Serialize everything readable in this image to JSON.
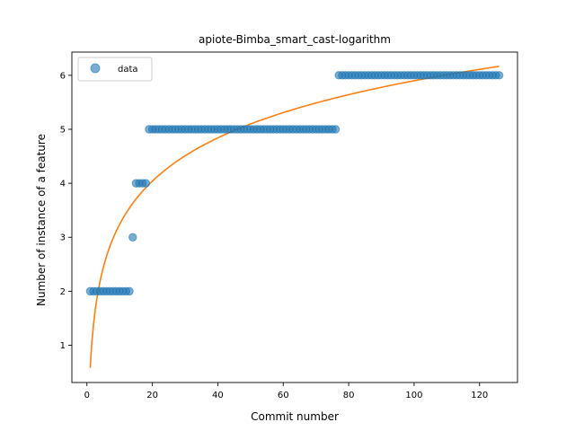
{
  "chart_data": {
    "type": "scatter",
    "title": "apiote-Bimba_smart_cast-logarithm",
    "xlabel": "Commit number",
    "ylabel": "Number of instance of a feature",
    "xlim": [
      -4.6,
      131.6
    ],
    "ylim": [
      0.31,
      6.43
    ],
    "x_ticks": [
      0,
      20,
      40,
      60,
      80,
      100,
      120
    ],
    "y_ticks": [
      1,
      2,
      3,
      4,
      5,
      6
    ],
    "grid": false,
    "legend": {
      "position": "top-left",
      "entries": [
        "data"
      ]
    },
    "colors": {
      "points": "#1f77b4",
      "fit": "#ff7f0e"
    },
    "series": [
      {
        "name": "data",
        "kind": "scatter",
        "points": [
          [
            1,
            2
          ],
          [
            2,
            2
          ],
          [
            3,
            2
          ],
          [
            4,
            2
          ],
          [
            5,
            2
          ],
          [
            6,
            2
          ],
          [
            7,
            2
          ],
          [
            8,
            2
          ],
          [
            9,
            2
          ],
          [
            10,
            2
          ],
          [
            11,
            2
          ],
          [
            12,
            2
          ],
          [
            13,
            2
          ],
          [
            14,
            3
          ],
          [
            15,
            4
          ],
          [
            16,
            4
          ],
          [
            17,
            4
          ],
          [
            18,
            4
          ],
          [
            19,
            5
          ],
          [
            20,
            5
          ],
          [
            21,
            5
          ],
          [
            22,
            5
          ],
          [
            23,
            5
          ],
          [
            24,
            5
          ],
          [
            25,
            5
          ],
          [
            26,
            5
          ],
          [
            27,
            5
          ],
          [
            28,
            5
          ],
          [
            29,
            5
          ],
          [
            30,
            5
          ],
          [
            31,
            5
          ],
          [
            32,
            5
          ],
          [
            33,
            5
          ],
          [
            34,
            5
          ],
          [
            35,
            5
          ],
          [
            36,
            5
          ],
          [
            37,
            5
          ],
          [
            38,
            5
          ],
          [
            39,
            5
          ],
          [
            40,
            5
          ],
          [
            41,
            5
          ],
          [
            42,
            5
          ],
          [
            43,
            5
          ],
          [
            44,
            5
          ],
          [
            45,
            5
          ],
          [
            46,
            5
          ],
          [
            47,
            5
          ],
          [
            48,
            5
          ],
          [
            49,
            5
          ],
          [
            50,
            5
          ],
          [
            51,
            5
          ],
          [
            52,
            5
          ],
          [
            53,
            5
          ],
          [
            54,
            5
          ],
          [
            55,
            5
          ],
          [
            56,
            5
          ],
          [
            57,
            5
          ],
          [
            58,
            5
          ],
          [
            59,
            5
          ],
          [
            60,
            5
          ],
          [
            61,
            5
          ],
          [
            62,
            5
          ],
          [
            63,
            5
          ],
          [
            64,
            5
          ],
          [
            65,
            5
          ],
          [
            66,
            5
          ],
          [
            67,
            5
          ],
          [
            68,
            5
          ],
          [
            69,
            5
          ],
          [
            70,
            5
          ],
          [
            71,
            5
          ],
          [
            72,
            5
          ],
          [
            73,
            5
          ],
          [
            74,
            5
          ],
          [
            75,
            5
          ],
          [
            76,
            5
          ],
          [
            77,
            6
          ],
          [
            78,
            6
          ],
          [
            79,
            6
          ],
          [
            80,
            6
          ],
          [
            81,
            6
          ],
          [
            82,
            6
          ],
          [
            83,
            6
          ],
          [
            84,
            6
          ],
          [
            85,
            6
          ],
          [
            86,
            6
          ],
          [
            87,
            6
          ],
          [
            88,
            6
          ],
          [
            89,
            6
          ],
          [
            90,
            6
          ],
          [
            91,
            6
          ],
          [
            92,
            6
          ],
          [
            93,
            6
          ],
          [
            94,
            6
          ],
          [
            95,
            6
          ],
          [
            96,
            6
          ],
          [
            97,
            6
          ],
          [
            98,
            6
          ],
          [
            99,
            6
          ],
          [
            100,
            6
          ],
          [
            101,
            6
          ],
          [
            102,
            6
          ],
          [
            103,
            6
          ],
          [
            104,
            6
          ],
          [
            105,
            6
          ],
          [
            106,
            6
          ],
          [
            107,
            6
          ],
          [
            108,
            6
          ],
          [
            109,
            6
          ],
          [
            110,
            6
          ],
          [
            111,
            6
          ],
          [
            112,
            6
          ],
          [
            113,
            6
          ],
          [
            114,
            6
          ],
          [
            115,
            6
          ],
          [
            116,
            6
          ],
          [
            117,
            6
          ],
          [
            118,
            6
          ],
          [
            119,
            6
          ],
          [
            120,
            6
          ],
          [
            121,
            6
          ],
          [
            122,
            6
          ],
          [
            123,
            6
          ],
          [
            124,
            6
          ],
          [
            125,
            6
          ],
          [
            126,
            6
          ]
        ]
      },
      {
        "kind": "line",
        "model": "logarithmic",
        "a": 0.58,
        "b": 1.155,
        "x_range": [
          1,
          126
        ]
      }
    ]
  }
}
